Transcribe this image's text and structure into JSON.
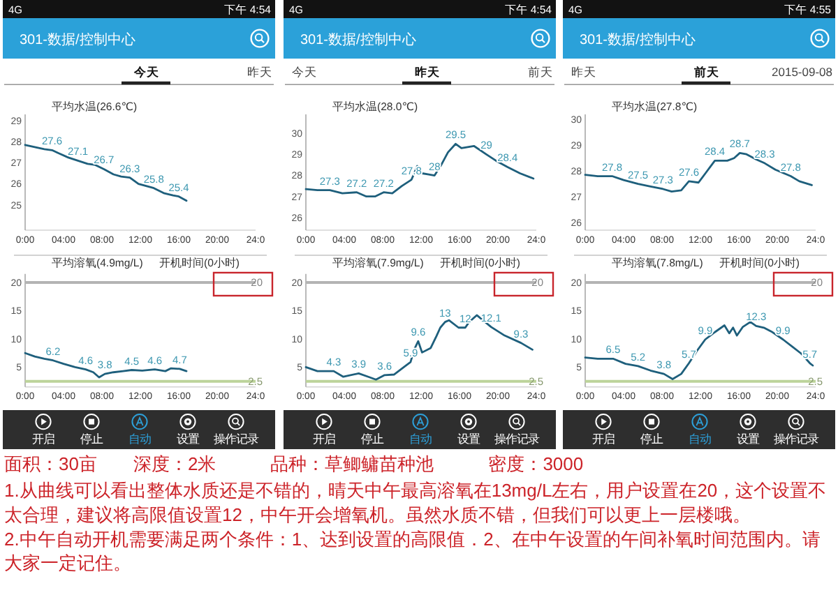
{
  "chart_data": [
    {
      "type": "line",
      "title": "平均水温(26.6℃)",
      "annotations": [
        "4G",
        "下午 4:54",
        "301-数据/控制中心",
        "今天",
        "昨天"
      ],
      "x": [
        0,
        1,
        2,
        2.8,
        3.5,
        4.5,
        5.5,
        6.5,
        7.3,
        8.2,
        9.2,
        10,
        10.9,
        11.8,
        12.6,
        13.4,
        14.5,
        15.4,
        16,
        16.8
      ],
      "values": [
        27.85,
        27.75,
        27.65,
        27.6,
        27.45,
        27.25,
        27.1,
        26.95,
        26.9,
        26.7,
        26.45,
        26.35,
        26.3,
        26.0,
        25.9,
        25.8,
        25.55,
        25.45,
        25.4,
        25.2
      ],
      "value_labels": [
        null,
        null,
        null,
        "27.6",
        null,
        null,
        "27.1",
        null,
        null,
        "26.7",
        null,
        null,
        "26.3",
        null,
        null,
        "25.8",
        null,
        null,
        "25.4",
        null
      ],
      "color": "#1e5f7c",
      "xlim": [
        0,
        24
      ],
      "xticks": [
        {
          "value": 0,
          "label": "0:00"
        },
        {
          "value": 4,
          "label": "04:00"
        },
        {
          "value": 8,
          "label": "08:00"
        },
        {
          "value": 12,
          "label": "12:00"
        },
        {
          "value": 16,
          "label": "16:00"
        },
        {
          "value": 20,
          "label": "20:00"
        },
        {
          "value": 24,
          "label": "24:0"
        }
      ],
      "ylim": [
        23.8,
        29.3
      ],
      "yticks": [
        25,
        26,
        27,
        28,
        29
      ]
    },
    {
      "type": "line",
      "title": "平均水温(28.0℃)",
      "annotations": [
        "4G",
        "下午 4:54",
        "301-数据/控制中心",
        "今天",
        "昨天",
        "前天"
      ],
      "x": [
        0,
        1.2,
        2.5,
        3.8,
        5.3,
        6.3,
        7.2,
        8.1,
        9,
        10,
        11,
        11.6,
        12.1,
        12.8,
        13.4,
        14.1,
        14.8,
        15.6,
        16.2,
        17.5,
        18.8,
        19.8,
        21,
        22.3,
        23.7
      ],
      "values": [
        27.35,
        27.3,
        27.3,
        27.15,
        27.2,
        27.0,
        27.0,
        27.2,
        27.15,
        27.5,
        27.8,
        28.45,
        28.1,
        28.05,
        28.0,
        28.5,
        29.1,
        29.5,
        29.3,
        29.4,
        29.0,
        28.7,
        28.4,
        28.1,
        27.85
      ],
      "value_labels": [
        null,
        null,
        "27.3",
        null,
        "27.2",
        null,
        null,
        "27.2",
        null,
        null,
        "27.8",
        null,
        null,
        null,
        "28",
        null,
        null,
        "29.5",
        null,
        null,
        "29",
        null,
        "28.4",
        null,
        null
      ],
      "color": "#1e5f7c",
      "xlim": [
        0,
        24
      ],
      "xticks": [
        {
          "value": 0,
          "label": "0:00"
        },
        {
          "value": 4,
          "label": "04:00"
        },
        {
          "value": 8,
          "label": "08:00"
        },
        {
          "value": 12,
          "label": "12:00"
        },
        {
          "value": 16,
          "label": "16:00"
        },
        {
          "value": 20,
          "label": "20:00"
        },
        {
          "value": 24,
          "label": "24:0"
        }
      ],
      "ylim": [
        25.4,
        30.9
      ],
      "yticks": [
        26,
        27,
        28,
        29,
        30
      ]
    },
    {
      "type": "line",
      "title": "平均水温(27.8℃)",
      "annotations": [
        "4G",
        "下午 4:55",
        "301-数据/控制中心",
        "昨天",
        "前天",
        "2015-09-08"
      ],
      "x": [
        0,
        1.3,
        2.8,
        4,
        5.5,
        6.8,
        8.1,
        9,
        10,
        10.8,
        11.8,
        12.6,
        13.5,
        14.8,
        15.5,
        16.1,
        16.8,
        17.8,
        18.7,
        19.8,
        21.4,
        22.3,
        23.6
      ],
      "values": [
        27.85,
        27.8,
        27.8,
        27.65,
        27.5,
        27.4,
        27.3,
        27.2,
        27.25,
        27.6,
        27.55,
        27.95,
        28.4,
        28.4,
        28.5,
        28.7,
        28.65,
        28.45,
        28.3,
        28.05,
        27.8,
        27.6,
        27.45
      ],
      "value_labels": [
        null,
        null,
        "27.8",
        null,
        "27.5",
        null,
        "27.3",
        null,
        null,
        "27.6",
        null,
        null,
        "28.4",
        null,
        null,
        "28.7",
        null,
        null,
        "28.3",
        null,
        "27.8",
        null,
        null
      ],
      "color": "#1e5f7c",
      "xlim": [
        0,
        24
      ],
      "xticks": [
        {
          "value": 0,
          "label": "0:00"
        },
        {
          "value": 4,
          "label": "04:00"
        },
        {
          "value": 8,
          "label": "08:00"
        },
        {
          "value": 12,
          "label": "12:00"
        },
        {
          "value": 16,
          "label": "16:00"
        },
        {
          "value": 20,
          "label": "20:00"
        },
        {
          "value": 24,
          "label": "24:0"
        }
      ],
      "ylim": [
        25.7,
        30.2
      ],
      "yticks": [
        26,
        27,
        28,
        29,
        30
      ]
    },
    {
      "type": "line",
      "title": "平均溶氧(4.9mg/L)",
      "subtitle": "开机时间(0小时)",
      "annotations": [
        "开启",
        "停止",
        "自动",
        "设置",
        "操作记录"
      ],
      "x": [
        0,
        1,
        2,
        2.9,
        4,
        5.2,
        6.3,
        7.1,
        7.7,
        8.3,
        9.2,
        10.2,
        11.1,
        12.2,
        13.5,
        14.6,
        15.2,
        16.1,
        16.8
      ],
      "values": [
        7.5,
        6.9,
        6.5,
        6.2,
        5.6,
        5.0,
        4.6,
        4.1,
        3.2,
        3.8,
        4.1,
        4.3,
        4.5,
        4.4,
        4.6,
        4.3,
        4.8,
        4.7,
        4.3
      ],
      "value_labels": [
        null,
        null,
        null,
        "6.2",
        null,
        null,
        "4.6",
        null,
        null,
        "3.8",
        null,
        null,
        "4.5",
        null,
        "4.6",
        null,
        null,
        "4.7",
        null
      ],
      "color": "#1e5f7c",
      "xlim": [
        0,
        24
      ],
      "xticks": [
        {
          "value": 0,
          "label": "0:00"
        },
        {
          "value": 4,
          "label": "04:00"
        },
        {
          "value": 8,
          "label": "08:00"
        },
        {
          "value": 12,
          "label": "12:00"
        },
        {
          "value": 16,
          "label": "16:00"
        },
        {
          "value": 20,
          "label": "20:00"
        },
        {
          "value": 24,
          "label": "24:0"
        }
      ],
      "ylim": [
        1.5,
        21.5
      ],
      "yticks": [
        5,
        10,
        15,
        20
      ],
      "ref_lines": [
        {
          "axis": "y",
          "value": 20,
          "label": "20",
          "color": "#b4b4b4"
        },
        {
          "axis": "y",
          "value": 2.5,
          "label": "2.5",
          "color": "#bcd39a"
        }
      ]
    },
    {
      "type": "line",
      "title": "平均溶氧(7.9mg/L)",
      "subtitle": "开机时间(0小时)",
      "annotations": [
        "开启",
        "停止",
        "自动",
        "设置",
        "操作记录"
      ],
      "x": [
        0,
        1.2,
        2.9,
        3.9,
        5.5,
        6.5,
        7.3,
        8.2,
        9.2,
        10.2,
        10.9,
        11.3,
        11.7,
        12.1,
        13.0,
        13.6,
        14.0,
        14.5,
        14.9,
        15.9,
        16.6,
        17.0,
        17.8,
        19.3,
        20.7,
        22.4,
        23.6
      ],
      "values": [
        5.0,
        4.3,
        4.3,
        3.3,
        3.9,
        3.3,
        2.8,
        3.6,
        3.7,
        5.0,
        5.9,
        8.2,
        9.6,
        7.6,
        8.4,
        10.5,
        12.0,
        13,
        13.3,
        12.0,
        12,
        13.0,
        14.2,
        12.1,
        10.6,
        9.3,
        8.1
      ],
      "value_labels": [
        null,
        null,
        "4.3",
        null,
        "3.9",
        null,
        null,
        "3.6",
        null,
        null,
        "5.9",
        null,
        "9.6",
        null,
        null,
        null,
        null,
        "13",
        null,
        null,
        "12",
        null,
        null,
        "12.1",
        null,
        "9.3",
        null
      ],
      "color": "#1e5f7c",
      "xlim": [
        0,
        24
      ],
      "xticks": [
        {
          "value": 0,
          "label": "0:00"
        },
        {
          "value": 4,
          "label": "04:00"
        },
        {
          "value": 8,
          "label": "08:00"
        },
        {
          "value": 12,
          "label": "12:00"
        },
        {
          "value": 16,
          "label": "16:00"
        },
        {
          "value": 20,
          "label": "20:00"
        },
        {
          "value": 24,
          "label": "24:0"
        }
      ],
      "ylim": [
        1.5,
        21.5
      ],
      "yticks": [
        5,
        10,
        15,
        20
      ],
      "ref_lines": [
        {
          "axis": "y",
          "value": 20,
          "label": "20",
          "color": "#b4b4b4"
        },
        {
          "axis": "y",
          "value": 2.5,
          "label": "2.5",
          "color": "#bcd39a"
        }
      ]
    },
    {
      "type": "line",
      "title": "平均溶氧(7.8mg/L)",
      "subtitle": "开机时间(0小时)",
      "annotations": [
        "开启",
        "停止",
        "自动",
        "设置",
        "操作记录"
      ],
      "x": [
        0,
        1.3,
        2.9,
        4.2,
        5.5,
        6.8,
        8.2,
        9.1,
        10.0,
        10.8,
        11.6,
        12.5,
        13.5,
        14.5,
        15.0,
        15.4,
        15.8,
        16.4,
        17.2,
        17.8,
        18.6,
        19.4,
        20.6,
        21.6,
        22.5,
        23.4,
        23.7
      ],
      "values": [
        6.7,
        6.5,
        6.5,
        5.6,
        5.2,
        4.4,
        3.8,
        2.9,
        3.8,
        5.7,
        7.8,
        9.9,
        11.2,
        12.4,
        11.0,
        12.0,
        10.6,
        12.1,
        13.0,
        12.3,
        12.0,
        11.3,
        9.9,
        8.6,
        7.4,
        5.7,
        5.3
      ],
      "value_labels": [
        null,
        null,
        "6.5",
        null,
        "5.2",
        null,
        "3.8",
        null,
        null,
        "5.7",
        null,
        "9.9",
        null,
        null,
        null,
        null,
        null,
        null,
        null,
        "12.3",
        null,
        null,
        "9.9",
        null,
        null,
        "5.7",
        null
      ],
      "color": "#1e5f7c",
      "xlim": [
        0,
        24
      ],
      "xticks": [
        {
          "value": 0,
          "label": "0:00"
        },
        {
          "value": 4,
          "label": "04:00"
        },
        {
          "value": 8,
          "label": "08:00"
        },
        {
          "value": 12,
          "label": "12:00"
        },
        {
          "value": 16,
          "label": "16:00"
        },
        {
          "value": 20,
          "label": "20:00"
        },
        {
          "value": 24,
          "label": "24:0"
        }
      ],
      "ylim": [
        1.5,
        21.5
      ],
      "yticks": [
        5,
        10,
        15,
        20
      ],
      "ref_lines": [
        {
          "axis": "y",
          "value": 20,
          "label": "20",
          "color": "#b4b4b4"
        },
        {
          "axis": "y",
          "value": 2.5,
          "label": "2.5",
          "color": "#bcd39a"
        }
      ]
    },
    {
      "type": "other",
      "annotations": [
        "面积：30亩　　深度：2米　　　品种：草鲫鳙苗种池　　　密度：3000",
        "1.从曲线可以看出整体水质还是不错的，晴天中午最高溶氧在13mg/L左右，用户设置在20，这个设置不太合理，建议将高限值设置12，中午开会增氧机。虽然水质不错，但我们可以更上一层楼哦。",
        "2.中午自动开机需要满足两个条件：1、达到设置的高限值．2、在中午设置的午间补氧时间范围内。请大家一定记住。"
      ]
    }
  ]
}
